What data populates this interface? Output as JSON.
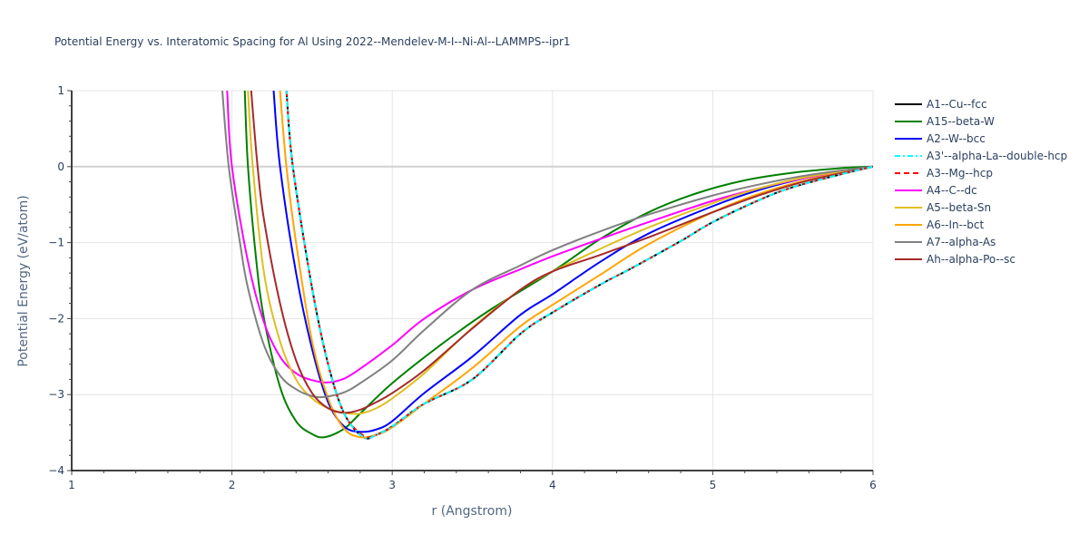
{
  "chart_data": {
    "type": "line",
    "title": "Potential Energy vs. Interatomic Spacing for Al Using 2022--Mendelev-M-I--Ni-Al--LAMMPS--ipr1",
    "xlabel": "r (Angstrom)",
    "ylabel": "Potential Energy (eV/atom)",
    "xlim": [
      1,
      6
    ],
    "ylim": [
      -4,
      1
    ],
    "x_ticks": [
      1,
      2,
      3,
      4,
      5,
      6
    ],
    "y_ticks": [
      1,
      0,
      -1,
      -2,
      -3,
      -4
    ],
    "y_tick_labels": [
      "1",
      "0",
      "−1",
      "−2",
      "−3",
      "−4"
    ],
    "grid": true,
    "legend_position": "right",
    "series": [
      {
        "name": "A1--Cu--fcc",
        "color": "#000000",
        "dash": "solid",
        "x": [
          2.34,
          2.38,
          2.5,
          2.6,
          2.7,
          2.82,
          2.9,
          3.0,
          3.2,
          3.5,
          3.8,
          4.0,
          4.3,
          4.5,
          4.8,
          5.0,
          5.3,
          5.5,
          5.8,
          6.0
        ],
        "y": [
          1.0,
          0.0,
          -1.6,
          -2.6,
          -3.25,
          -3.56,
          -3.53,
          -3.42,
          -3.12,
          -2.8,
          -2.2,
          -1.92,
          -1.55,
          -1.33,
          -0.98,
          -0.73,
          -0.43,
          -0.27,
          -0.1,
          0.0
        ]
      },
      {
        "name": "A15--beta-W",
        "color": "#008000",
        "dash": "solid",
        "x": [
          2.08,
          2.1,
          2.15,
          2.2,
          2.3,
          2.4,
          2.5,
          2.58,
          2.7,
          2.8,
          3.0,
          3.3,
          3.6,
          4.0,
          4.3,
          4.6,
          4.9,
          5.2,
          5.5,
          5.8,
          6.0
        ],
        "y": [
          1.0,
          0.0,
          -1.2,
          -2.0,
          -2.9,
          -3.35,
          -3.52,
          -3.56,
          -3.45,
          -3.25,
          -2.85,
          -2.35,
          -1.9,
          -1.38,
          -0.95,
          -0.6,
          -0.35,
          -0.18,
          -0.08,
          -0.02,
          0.0
        ]
      },
      {
        "name": "A2--W--bcc",
        "color": "#0000ff",
        "dash": "solid",
        "x": [
          2.26,
          2.3,
          2.4,
          2.5,
          2.6,
          2.7,
          2.8,
          2.9,
          3.0,
          3.2,
          3.5,
          3.8,
          4.0,
          4.3,
          4.6,
          5.0,
          5.3,
          5.6,
          6.0
        ],
        "y": [
          1.0,
          0.0,
          -1.4,
          -2.4,
          -3.1,
          -3.42,
          -3.49,
          -3.46,
          -3.35,
          -2.98,
          -2.5,
          -1.95,
          -1.68,
          -1.25,
          -0.88,
          -0.52,
          -0.3,
          -0.14,
          0.0
        ]
      },
      {
        "name": "A3'--alpha-La--double-hcp",
        "color": "#00ffff",
        "dash": "dashdot",
        "x": [
          2.34,
          2.38,
          2.5,
          2.6,
          2.7,
          2.82,
          2.9,
          3.0,
          3.2,
          3.5,
          3.8,
          4.0,
          4.3,
          4.5,
          4.8,
          5.0,
          5.3,
          5.5,
          5.8,
          6.0
        ],
        "y": [
          1.0,
          0.0,
          -1.6,
          -2.6,
          -3.25,
          -3.56,
          -3.53,
          -3.42,
          -3.12,
          -2.8,
          -2.2,
          -1.92,
          -1.55,
          -1.33,
          -0.98,
          -0.73,
          -0.43,
          -0.27,
          -0.1,
          0.0
        ]
      },
      {
        "name": "A3--Mg--hcp",
        "color": "#ff0000",
        "dash": "dash",
        "x": [
          2.34,
          2.38,
          2.5,
          2.6,
          2.7,
          2.82,
          2.9,
          3.0,
          3.2,
          3.5,
          3.8,
          4.0,
          4.3,
          4.5,
          4.8,
          5.0,
          5.3,
          5.5,
          5.8,
          6.0
        ],
        "y": [
          1.0,
          0.0,
          -1.6,
          -2.6,
          -3.25,
          -3.54,
          -3.53,
          -3.42,
          -3.12,
          -2.8,
          -2.2,
          -1.92,
          -1.55,
          -1.33,
          -0.98,
          -0.73,
          -0.43,
          -0.27,
          -0.1,
          0.0
        ]
      },
      {
        "name": "A4--C--dc",
        "color": "#ff00ff",
        "dash": "solid",
        "x": [
          1.97,
          2.0,
          2.1,
          2.2,
          2.3,
          2.4,
          2.5,
          2.6,
          2.7,
          2.8,
          3.0,
          3.2,
          3.5,
          3.8,
          4.0,
          4.3,
          4.6,
          5.0,
          5.3,
          5.6,
          6.0
        ],
        "y": [
          1.0,
          0.0,
          -1.25,
          -2.05,
          -2.5,
          -2.72,
          -2.81,
          -2.84,
          -2.79,
          -2.66,
          -2.35,
          -2.0,
          -1.62,
          -1.35,
          -1.18,
          -0.95,
          -0.73,
          -0.45,
          -0.28,
          -0.14,
          0.0
        ]
      },
      {
        "name": "A5--beta-Sn",
        "color": "#dfbf20",
        "dash": "solid",
        "x": [
          2.1,
          2.13,
          2.2,
          2.3,
          2.4,
          2.5,
          2.6,
          2.7,
          2.8,
          2.9,
          3.0,
          3.2,
          3.5,
          3.8,
          4.0,
          4.3,
          4.6,
          5.0,
          5.3,
          5.6,
          6.0
        ],
        "y": [
          1.0,
          0.0,
          -1.4,
          -2.3,
          -2.8,
          -3.05,
          -3.18,
          -3.24,
          -3.25,
          -3.18,
          -3.05,
          -2.72,
          -2.12,
          -1.62,
          -1.38,
          -1.08,
          -0.8,
          -0.48,
          -0.28,
          -0.13,
          0.0
        ]
      },
      {
        "name": "A6--In--bct",
        "color": "#ffa500",
        "dash": "solid",
        "x": [
          2.3,
          2.34,
          2.4,
          2.5,
          2.6,
          2.7,
          2.8,
          2.9,
          3.0,
          3.2,
          3.5,
          3.8,
          4.0,
          4.3,
          4.6,
          5.0,
          5.3,
          5.6,
          6.0
        ],
        "y": [
          1.0,
          0.0,
          -1.0,
          -2.3,
          -3.05,
          -3.45,
          -3.56,
          -3.53,
          -3.43,
          -3.12,
          -2.65,
          -2.1,
          -1.82,
          -1.42,
          -1.02,
          -0.6,
          -0.35,
          -0.17,
          0.0
        ]
      },
      {
        "name": "A7--alpha-As",
        "color": "#808080",
        "dash": "solid",
        "x": [
          1.94,
          1.98,
          2.05,
          2.1,
          2.2,
          2.3,
          2.4,
          2.5,
          2.58,
          2.7,
          2.8,
          3.0,
          3.2,
          3.5,
          3.8,
          4.0,
          4.3,
          4.6,
          5.0,
          5.3,
          5.6,
          6.0
        ],
        "y": [
          1.0,
          0.0,
          -1.0,
          -1.6,
          -2.35,
          -2.75,
          -2.93,
          -3.02,
          -3.03,
          -2.97,
          -2.85,
          -2.55,
          -2.15,
          -1.62,
          -1.3,
          -1.1,
          -0.85,
          -0.63,
          -0.38,
          -0.23,
          -0.11,
          0.0
        ]
      },
      {
        "name": "Ah--alpha-Po--sc",
        "color": "#a52a2a",
        "dash": "solid",
        "x": [
          2.12,
          2.16,
          2.2,
          2.3,
          2.4,
          2.5,
          2.6,
          2.7,
          2.8,
          2.9,
          3.0,
          3.2,
          3.5,
          3.8,
          4.0,
          4.3,
          4.6,
          5.0,
          5.3,
          5.6,
          6.0
        ],
        "y": [
          1.0,
          0.0,
          -0.7,
          -1.8,
          -2.55,
          -2.98,
          -3.18,
          -3.24,
          -3.2,
          -3.1,
          -2.98,
          -2.68,
          -2.13,
          -1.62,
          -1.38,
          -1.16,
          -0.93,
          -0.6,
          -0.37,
          -0.18,
          0.0
        ]
      }
    ]
  }
}
